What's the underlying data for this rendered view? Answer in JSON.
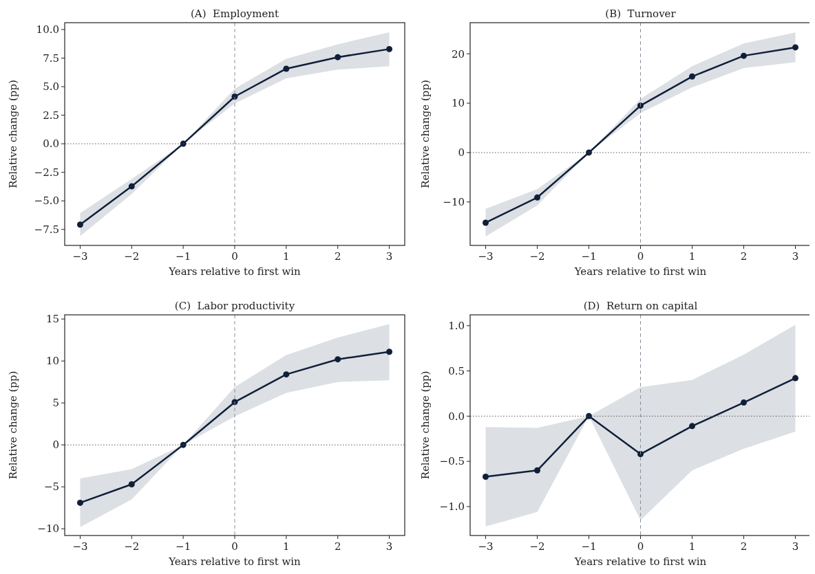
{
  "chart_data": [
    {
      "type": "line",
      "title": "(A)  Employment",
      "xlabel": "Years relative to first win",
      "ylabel": "Relative change (pp)",
      "x": [
        -3,
        -2,
        -1,
        0,
        1,
        2,
        3
      ],
      "xlim": [
        -3.3,
        3.3
      ],
      "xticks": [
        {
          "value": -3,
          "label": "−3"
        },
        {
          "value": -2,
          "label": "−2"
        },
        {
          "value": -1,
          "label": "−1"
        },
        0,
        1,
        2,
        3
      ],
      "ylim": [
        -8.9,
        10.6
      ],
      "yticks": [
        {
          "value": -7.5,
          "label": "−7.5"
        },
        {
          "value": -5,
          "label": "−5.0"
        },
        {
          "value": -2.5,
          "label": "−2.5"
        },
        {
          "value": 0,
          "label": "0.0"
        },
        {
          "value": 2.5,
          "label": "2.5"
        },
        {
          "value": 5,
          "label": "5.0"
        },
        {
          "value": 7.5,
          "label": "7.5"
        },
        {
          "value": 10,
          "label": "10.0"
        }
      ],
      "marker": "circle",
      "series": [
        {
          "color": "#0f1f3a",
          "values": [
            -7.08,
            -3.73,
            0,
            4.13,
            6.57,
            7.58,
            8.29
          ],
          "lower": [
            -8.08,
            -4.4,
            0,
            3.53,
            5.73,
            6.49,
            6.79
          ],
          "upper": [
            -6.07,
            -3.08,
            0,
            4.82,
            7.44,
            8.71,
            9.76
          ]
        }
      ],
      "ref_lines": [
        {
          "axis": "y",
          "value": 0,
          "color": "#555555",
          "line_style": "dotted"
        },
        {
          "axis": "x",
          "value": 0,
          "color": "#888e99",
          "line_style": "dashed"
        }
      ]
    },
    {
      "type": "line",
      "title": "(B)  Turnover",
      "xlabel": "Years relative to first win",
      "ylabel": "Relative change (pp)",
      "x": [
        -3,
        -2,
        -1,
        0,
        1,
        2,
        3
      ],
      "xlim": [
        -3.3,
        3.3
      ],
      "xticks": [
        {
          "value": -3,
          "label": "−3"
        },
        {
          "value": -2,
          "label": "−2"
        },
        {
          "value": -1,
          "label": "−1"
        },
        0,
        1,
        2,
        3
      ],
      "ylim": [
        -18.8,
        26.3
      ],
      "yticks": [
        {
          "value": -10,
          "label": "−10"
        },
        0,
        10,
        20
      ],
      "marker": "circle",
      "series": [
        {
          "color": "#0f1f3a",
          "values": [
            -14.2,
            -9.1,
            0,
            9.5,
            15.4,
            19.6,
            21.3
          ],
          "lower": [
            -17,
            -10.7,
            0,
            8,
            13.2,
            17.1,
            18.3
          ],
          "upper": [
            -11.4,
            -7.4,
            0,
            10.9,
            17.5,
            22.1,
            24.3
          ]
        }
      ],
      "ref_lines": [
        {
          "axis": "y",
          "value": 0,
          "color": "#555555",
          "line_style": "dotted"
        },
        {
          "axis": "x",
          "value": 0,
          "color": "#888e99",
          "line_style": "dashed"
        }
      ]
    },
    {
      "type": "line",
      "title": "(C)  Labor productivity",
      "xlabel": "Years relative to first win",
      "ylabel": "Relative change (pp)",
      "x": [
        -3,
        -2,
        -1,
        0,
        1,
        2,
        3
      ],
      "xlim": [
        -3.3,
        3.3
      ],
      "xticks": [
        {
          "value": -3,
          "label": "−3"
        },
        {
          "value": -2,
          "label": "−2"
        },
        {
          "value": -1,
          "label": "−1"
        },
        0,
        1,
        2,
        3
      ],
      "ylim": [
        -10.8,
        15.5
      ],
      "yticks": [
        {
          "value": -10,
          "label": "−10"
        },
        {
          "value": -5,
          "label": "−5"
        },
        0,
        5,
        10,
        15
      ],
      "marker": "circle",
      "series": [
        {
          "color": "#0f1f3a",
          "values": [
            -6.9,
            -4.7,
            0,
            5.1,
            8.4,
            10.2,
            11.1
          ],
          "lower": [
            -9.8,
            -6.5,
            0,
            3.4,
            6.2,
            7.5,
            7.7
          ],
          "upper": [
            -4,
            -2.9,
            0,
            6.9,
            10.7,
            12.8,
            14.4
          ]
        }
      ],
      "ref_lines": [
        {
          "axis": "y",
          "value": 0,
          "color": "#555555",
          "line_style": "dotted"
        },
        {
          "axis": "x",
          "value": 0,
          "color": "#888e99",
          "line_style": "dashed"
        }
      ]
    },
    {
      "type": "line",
      "title": "(D)  Return on capital",
      "xlabel": "Years relative to first win",
      "ylabel": "Relative change (pp)",
      "x": [
        -3,
        -2,
        -1,
        0,
        1,
        2,
        3
      ],
      "xlim": [
        -3.3,
        3.3
      ],
      "xticks": [
        {
          "value": -3,
          "label": "−3"
        },
        {
          "value": -2,
          "label": "−2"
        },
        {
          "value": -1,
          "label": "−1"
        },
        0,
        1,
        2,
        3
      ],
      "ylim": [
        -1.32,
        1.12
      ],
      "yticks": [
        {
          "value": -1,
          "label": "−1.0"
        },
        {
          "value": -0.5,
          "label": "−0.5"
        },
        {
          "value": 0,
          "label": "0.0"
        },
        {
          "value": 0.5,
          "label": "0.5"
        },
        {
          "value": 1,
          "label": "1.0"
        }
      ],
      "marker": "circle",
      "series": [
        {
          "color": "#0f1f3a",
          "values": [
            -0.67,
            -0.6,
            0,
            -0.42,
            -0.11,
            0.15,
            0.42
          ],
          "lower": [
            -1.22,
            -1.06,
            0,
            -1.15,
            -0.6,
            -0.36,
            -0.17
          ],
          "upper": [
            -0.12,
            -0.13,
            0,
            0.32,
            0.4,
            0.68,
            1.01
          ]
        }
      ],
      "ref_lines": [
        {
          "axis": "y",
          "value": 0,
          "color": "#555555",
          "line_style": "dotted"
        },
        {
          "axis": "x",
          "value": 0,
          "color": "#888e99",
          "line_style": "dashed"
        }
      ]
    }
  ]
}
